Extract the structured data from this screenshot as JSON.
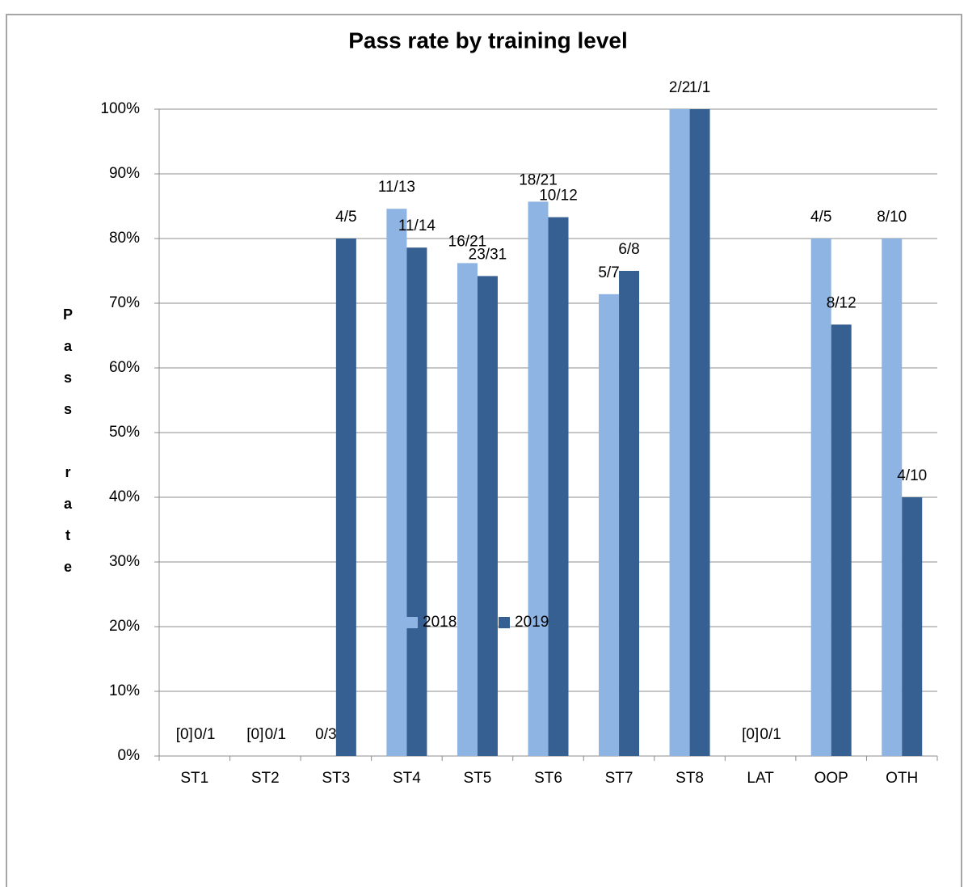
{
  "chart_data": {
    "type": "bar",
    "title": "Pass  rate by training level",
    "y_label": "Pass rate",
    "categories": [
      "ST1",
      "ST2",
      "ST3",
      "ST4",
      "ST5",
      "ST6",
      "ST7",
      "ST8",
      "LAT",
      "OOP",
      "OTH"
    ],
    "series": [
      {
        "name": "2018",
        "color": "#8eb4e3",
        "values": [
          0,
          0,
          0,
          84.6,
          76.2,
          85.7,
          71.4,
          100,
          0,
          80,
          80
        ],
        "value_labels": [
          "[0]",
          "[0]",
          "0/3",
          "11/13",
          "16/21",
          "18/21",
          "5/7",
          "2/2",
          "[0]",
          "4/5",
          "8/10"
        ]
      },
      {
        "name": "2019",
        "color": "#376092",
        "values": [
          0,
          0,
          80,
          78.6,
          74.2,
          83.3,
          75,
          100,
          0,
          66.7,
          40
        ],
        "value_labels": [
          "0/1",
          "0/1",
          "4/5",
          "11/14",
          "23/31",
          "10/12",
          "6/8",
          "1/1",
          "0/1",
          "8/12",
          "4/10"
        ]
      }
    ],
    "ylim": [
      0,
      100
    ],
    "yticks": [
      {
        "value": 0,
        "label": "0%"
      },
      {
        "value": 10,
        "label": "10%"
      },
      {
        "value": 20,
        "label": "20%"
      },
      {
        "value": 30,
        "label": "30%"
      },
      {
        "value": 40,
        "label": "40%"
      },
      {
        "value": 50,
        "label": "50%"
      },
      {
        "value": 60,
        "label": "60%"
      },
      {
        "value": 70,
        "label": "70%"
      },
      {
        "value": 80,
        "label": "80%"
      },
      {
        "value": 90,
        "label": "90%"
      },
      {
        "value": 100,
        "label": "100%"
      }
    ],
    "grid": true,
    "legend": "bottom"
  }
}
